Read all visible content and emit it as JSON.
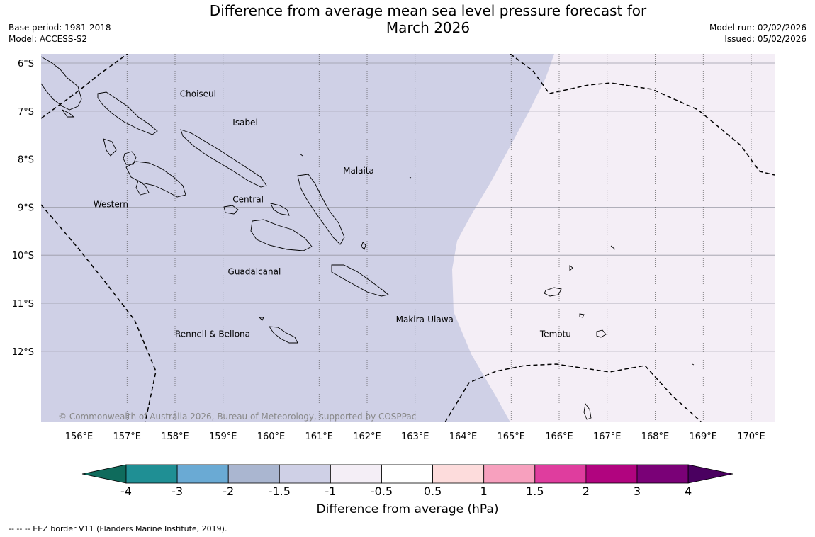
{
  "header": {
    "title_line1": "Difference from average mean sea level pressure forecast for",
    "title_line2": "March 2026",
    "base_period": "Base period: 1981-2018",
    "model": "Model: ACCESS-S2",
    "model_run": "Model run: 02/02/2026",
    "issued": "Issued: 05/02/2026"
  },
  "map": {
    "latitude_labels": [
      "6°S",
      "7°S",
      "8°S",
      "9°S",
      "10°S",
      "11°S",
      "12°S"
    ],
    "longitude_labels": [
      "156°E",
      "157°E",
      "158°E",
      "159°E",
      "160°E",
      "161°E",
      "162°E",
      "163°E",
      "164°E",
      "165°E",
      "166°E",
      "167°E",
      "168°E",
      "169°E",
      "170°E"
    ],
    "regions": [
      {
        "name": "Choiseul",
        "lon": 158.1,
        "lat": -6.7
      },
      {
        "name": "Isabel",
        "lon": 159.2,
        "lat": -7.3
      },
      {
        "name": "Malaita",
        "lon": 161.5,
        "lat": -8.3
      },
      {
        "name": "Western",
        "lon": 156.3,
        "lat": -9.0
      },
      {
        "name": "Central",
        "lon": 159.2,
        "lat": -8.9
      },
      {
        "name": "Guadalcanal",
        "lon": 159.1,
        "lat": -10.4
      },
      {
        "name": "Makira-Ulawa",
        "lon": 162.6,
        "lat": -11.4
      },
      {
        "name": "Rennell & Bellona",
        "lon": 158.0,
        "lat": -11.7
      },
      {
        "name": "Temotu",
        "lon": 165.6,
        "lat": -11.7
      }
    ],
    "copyright": "© Commonwealth of Australia 2026, Bureau of Meteorology, supported by COSPPac",
    "fill_colors": {
      "west": "#cfd0e6",
      "east": "#f4eef6"
    }
  },
  "colorbar": {
    "title": "Difference from average (hPa)",
    "tick_labels": [
      "-4",
      "-3",
      "-2",
      "-1.5",
      "-1",
      "-0.5",
      "0.5",
      "1",
      "1.5",
      "2",
      "3",
      "4"
    ],
    "colors": [
      "#1f8f94",
      "#6aaad4",
      "#aab6d0",
      "#cfd0e6",
      "#f4eef6",
      "#ffffff",
      "#fddcdc",
      "#f7a0be",
      "#df3d9e",
      "#b1047f",
      "#7a0177"
    ],
    "low_extend_color": "#0f6b5c",
    "high_extend_color": "#4a0060"
  },
  "footnote": "--  --  -- EEZ border V11 (Flanders Marine Institute, 2019)."
}
